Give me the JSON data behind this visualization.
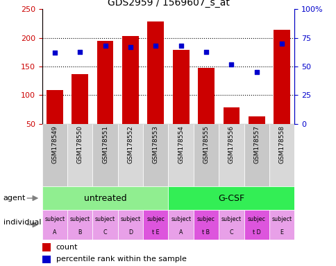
{
  "title": "GDS2959 / 1569607_s_at",
  "samples": [
    "GSM178549",
    "GSM178550",
    "GSM178551",
    "GSM178552",
    "GSM178553",
    "GSM178554",
    "GSM178555",
    "GSM178556",
    "GSM178557",
    "GSM178558"
  ],
  "counts": [
    109,
    137,
    195,
    203,
    229,
    179,
    147,
    78,
    63,
    214
  ],
  "percentiles": [
    62,
    63,
    68,
    67,
    68,
    68,
    63,
    52,
    45,
    70
  ],
  "ylim_left": [
    50,
    250
  ],
  "ylim_right": [
    0,
    100
  ],
  "hgrid_values": [
    100,
    150,
    200
  ],
  "bar_color": "#cc0000",
  "dot_color": "#0000cc",
  "ylabel_left_color": "#cc0000",
  "ylabel_right_color": "#0000cc",
  "bar_bottom": 50,
  "agent_untreated_color": "#90ee90",
  "agent_gcsf_color": "#33ee55",
  "individual_colors": [
    "#e8a0e8",
    "#e8a0e8",
    "#e8a0e8",
    "#e8a0e8",
    "#dd55dd",
    "#e8a0e8",
    "#dd55dd",
    "#e8a0e8",
    "#dd55dd",
    "#e8a0e8"
  ],
  "individual_labels_line1": [
    "subject",
    "subject",
    "subject",
    "subject",
    "subjec",
    "subject",
    "subjec",
    "subject",
    "subjec",
    "subject"
  ],
  "individual_labels_line2": [
    "A",
    "B",
    "C",
    "D",
    "t E",
    "A",
    "t B",
    "C",
    "t D",
    "E"
  ],
  "sample_bg_colors": [
    "#c8c8c8",
    "#d8d8d8",
    "#c8c8c8",
    "#d8d8d8",
    "#c8c8c8",
    "#d8d8d8",
    "#c8c8c8",
    "#d8d8d8",
    "#c8c8c8",
    "#d8d8d8"
  ]
}
